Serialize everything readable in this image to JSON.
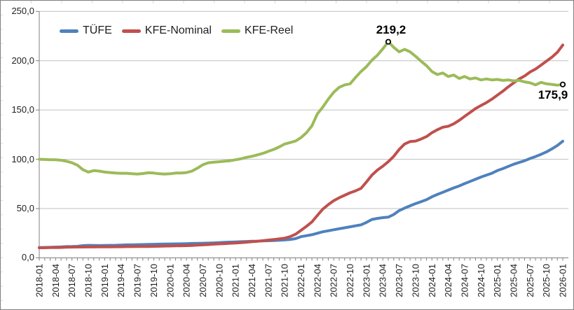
{
  "chart_data": {
    "type": "line",
    "title": "",
    "legend_position": "top",
    "grid": "horizontal",
    "decimal_style": "comma",
    "ylim": [
      0,
      250
    ],
    "ytick_step": 50,
    "y_tick_labels": [
      "250,0",
      "200,0",
      "150,0",
      "100,0",
      "50,0",
      "0,0"
    ],
    "x_tick_step": 3,
    "x_axis_labels_shown": [
      "2018-01",
      "2018-04",
      "2018-07",
      "2018-10",
      "2019-01",
      "2019-04",
      "2019-07",
      "2019-10",
      "2020-01",
      "2020-04",
      "2020-07",
      "2020-10",
      "2021-01",
      "2021-04",
      "2021-07",
      "2021-10",
      "2022-01",
      "2022-04",
      "2022-07",
      "2022-10",
      "2023-01",
      "2023-04",
      "2023-07",
      "2023-10",
      "2024-01",
      "2024-04",
      "2024-07",
      "2024-10",
      "2025-01",
      "2025-04",
      "2025-07",
      "2025-10",
      "2026-01"
    ],
    "months": [
      "2018-01",
      "2018-02",
      "2018-03",
      "2018-04",
      "2018-05",
      "2018-06",
      "2018-07",
      "2018-08",
      "2018-09",
      "2018-10",
      "2018-11",
      "2018-12",
      "2019-01",
      "2019-02",
      "2019-03",
      "2019-04",
      "2019-05",
      "2019-06",
      "2019-07",
      "2019-08",
      "2019-09",
      "2019-10",
      "2019-11",
      "2019-12",
      "2020-01",
      "2020-02",
      "2020-03",
      "2020-04",
      "2020-05",
      "2020-06",
      "2020-07",
      "2020-08",
      "2020-09",
      "2020-10",
      "2020-11",
      "2020-12",
      "2021-01",
      "2021-02",
      "2021-03",
      "2021-04",
      "2021-05",
      "2021-06",
      "2021-07",
      "2021-08",
      "2021-09",
      "2021-10",
      "2021-11",
      "2021-12",
      "2022-01",
      "2022-02",
      "2022-03",
      "2022-04",
      "2022-05",
      "2022-06",
      "2022-07",
      "2022-08",
      "2022-09",
      "2022-10",
      "2022-11",
      "2022-12",
      "2023-01",
      "2023-02",
      "2023-03",
      "2023-04",
      "2023-05",
      "2023-06",
      "2023-07",
      "2023-08",
      "2023-09",
      "2023-10",
      "2023-11",
      "2023-12",
      "2024-01",
      "2024-02",
      "2024-03",
      "2024-04",
      "2024-05",
      "2024-06",
      "2024-07",
      "2024-08",
      "2024-09",
      "2024-10",
      "2024-11",
      "2024-12",
      "2025-01",
      "2025-02",
      "2025-03",
      "2025-04",
      "2025-05",
      "2025-06",
      "2025-07",
      "2025-08",
      "2025-09",
      "2025-10",
      "2025-11",
      "2025-12",
      "2026-01"
    ],
    "series": [
      {
        "name": "TÜFE",
        "color": "#4F81BD",
        "values": [
          10.5,
          10.6,
          10.7,
          10.9,
          11.1,
          11.4,
          11.5,
          11.7,
          12.4,
          12.7,
          12.6,
          12.5,
          12.6,
          12.7,
          12.8,
          13.0,
          13.2,
          13.2,
          13.4,
          13.5,
          13.6,
          13.8,
          13.9,
          14.0,
          14.1,
          14.2,
          14.3,
          14.4,
          14.6,
          14.7,
          14.8,
          15.0,
          15.2,
          15.5,
          15.8,
          16.0,
          16.2,
          16.4,
          16.6,
          16.9,
          17.0,
          17.2,
          17.4,
          17.6,
          17.8,
          18.2,
          18.6,
          19.5,
          21.5,
          22.5,
          23.5,
          25.0,
          26.5,
          27.5,
          28.5,
          29.5,
          30.5,
          31.5,
          32.5,
          33.5,
          36.0,
          39.0,
          40.0,
          40.8,
          41.3,
          44.0,
          48.0,
          50.5,
          52.8,
          55.0,
          57.0,
          59.0,
          62.0,
          64.3,
          66.5,
          68.8,
          71.0,
          73.0,
          75.3,
          77.5,
          79.8,
          82.0,
          84.0,
          85.8,
          88.5,
          90.5,
          92.8,
          95.0,
          96.8,
          98.5,
          100.8,
          102.8,
          105.0,
          107.5,
          110.5,
          114.0,
          118.3
        ]
      },
      {
        "name": "KFE-Nominal",
        "color": "#C0504D",
        "values": [
          10.2,
          10.3,
          10.4,
          10.5,
          10.6,
          10.8,
          10.9,
          11.0,
          11.0,
          11.1,
          11.1,
          11.2,
          11.2,
          11.2,
          11.3,
          11.3,
          11.4,
          11.4,
          11.5,
          11.5,
          11.6,
          11.7,
          11.8,
          12.0,
          12.1,
          12.2,
          12.3,
          12.4,
          12.6,
          12.9,
          13.2,
          13.5,
          13.9,
          14.2,
          14.5,
          14.8,
          15.1,
          15.5,
          15.9,
          16.4,
          16.9,
          17.4,
          18.0,
          18.6,
          19.3,
          20.0,
          21.5,
          24.0,
          28.0,
          32.0,
          36.5,
          43.0,
          49.5,
          54.0,
          58.0,
          61.0,
          63.5,
          66.0,
          68.0,
          70.5,
          77.0,
          84.0,
          89.0,
          93.0,
          97.5,
          103.0,
          110.0,
          115.5,
          118.0,
          118.5,
          120.5,
          123.0,
          127.0,
          130.0,
          132.5,
          133.5,
          136.0,
          139.5,
          143.5,
          147.5,
          151.5,
          154.5,
          157.5,
          161.0,
          165.0,
          169.0,
          173.5,
          177.5,
          181.5,
          184.5,
          188.5,
          191.5,
          195.5,
          199.5,
          203.5,
          208.5,
          215.9
        ]
      },
      {
        "name": "KFE-Reel",
        "color": "#9BBB59",
        "values": [
          100.0,
          99.8,
          99.5,
          99.6,
          99.0,
          98.0,
          96.5,
          94.0,
          89.5,
          87.0,
          88.5,
          88.0,
          87.0,
          86.5,
          86.0,
          85.8,
          85.8,
          85.3,
          85.0,
          85.5,
          86.3,
          86.0,
          85.3,
          85.0,
          85.3,
          86.0,
          86.0,
          86.5,
          88.0,
          91.0,
          94.5,
          96.5,
          97.0,
          97.5,
          98.0,
          98.5,
          99.5,
          100.5,
          102.0,
          103.0,
          104.5,
          106.0,
          108.0,
          110.0,
          112.5,
          115.5,
          117.0,
          118.5,
          122.0,
          127.0,
          134.0,
          146.0,
          153.0,
          161.0,
          168.0,
          173.0,
          175.5,
          176.5,
          183.0,
          189.0,
          194.0,
          200.5,
          205.5,
          212.0,
          219.2,
          213.5,
          209.0,
          211.5,
          209.0,
          204.5,
          199.5,
          195.0,
          189.0,
          186.0,
          187.5,
          184.0,
          185.5,
          182.0,
          184.0,
          181.5,
          182.5,
          180.5,
          181.5,
          180.5,
          181.0,
          180.0,
          180.5,
          179.5,
          180.0,
          178.5,
          177.5,
          175.5,
          178.0,
          176.5,
          176.0,
          175.2,
          175.9
        ]
      }
    ],
    "annotations": [
      {
        "label": "219,2",
        "series": "KFE-Reel",
        "month": "2023-05",
        "x_index": 64,
        "value": 219.2
      },
      {
        "label": "175,9",
        "series": "KFE-Reel",
        "month": "2026-01",
        "x_index": 96,
        "value": 175.9
      }
    ],
    "colors": {
      "gridline": "#bfbfbf",
      "axis": "#808080",
      "tick_text": "#1f1f1f",
      "annotation_text": "#000000",
      "frame_border": "#7f7f7f"
    }
  }
}
